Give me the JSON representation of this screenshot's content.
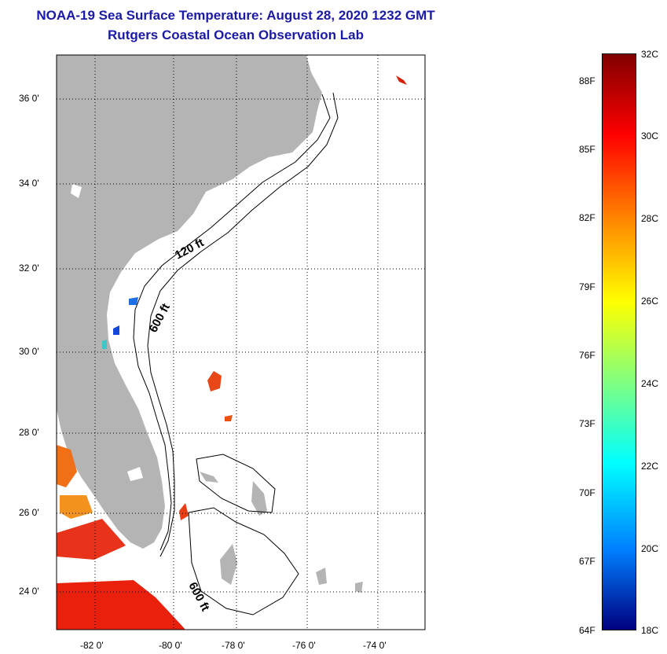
{
  "title": "NOAA-19 Sea Surface Temperature:  August 28, 2020 1232 GMT",
  "subtitle": "Rutgers Coastal Ocean Observation Lab",
  "map": {
    "lat_labels": [
      "36 0'",
      "34 0'",
      "32 0'",
      "30 0'",
      "28 0'",
      "26 0'",
      "24 0'"
    ],
    "lon_labels": [
      "-82 0'",
      "-80 0'",
      "-78 0'",
      "-76 0'",
      "-74 0'"
    ],
    "isobath_labels": [
      "120 ft",
      "600 ft",
      "600 ft"
    ],
    "land_color": "#b4b4b4",
    "ocean_color": "#ffffff"
  },
  "colorbar": {
    "fahrenheit_labels": [
      "88F",
      "85F",
      "82F",
      "79F",
      "76F",
      "73F",
      "70F",
      "67F",
      "64F"
    ],
    "celsius_labels": [
      "32C",
      "30C",
      "28C",
      "26C",
      "24C",
      "22C",
      "20C",
      "18C"
    ],
    "colors": [
      "#800000",
      "#ff0000",
      "#ff8000",
      "#ffff00",
      "#80ff80",
      "#00ffff",
      "#0080ff",
      "#0000ff",
      "#000080"
    ]
  }
}
